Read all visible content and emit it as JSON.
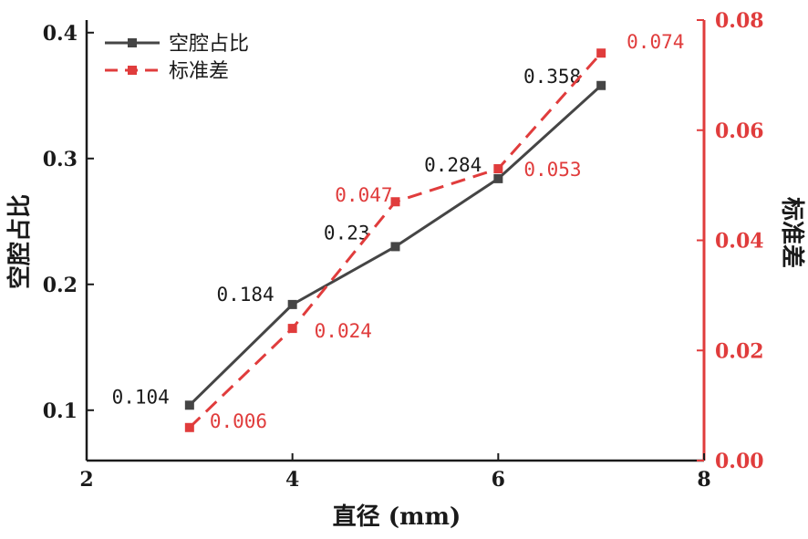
{
  "chart_data": {
    "type": "line",
    "x": [
      3,
      4,
      5,
      6,
      7
    ],
    "xlabel": "直径 (mm)",
    "xlim": [
      2,
      8
    ],
    "xticks": [
      2,
      4,
      6,
      8
    ],
    "ylabel_left": "空腔占比",
    "ylim_left": [
      0.06,
      0.41
    ],
    "yticks_left": [
      "0.1",
      "0.2",
      "0.3",
      "0.4"
    ],
    "ylabel_right": "标准差",
    "ylim_right": [
      0.0,
      0.08
    ],
    "yticks_right": [
      "0.00",
      "0.02",
      "0.04",
      "0.06",
      "0.08"
    ],
    "grid": false,
    "legend_position": "top-left",
    "series": [
      {
        "name": "空腔占比",
        "axis": "left",
        "color": "#454545",
        "line_style": "solid",
        "values": [
          0.104,
          0.184,
          0.23,
          0.284,
          0.358
        ],
        "labels": [
          "0.104",
          "0.184",
          "0.23",
          "0.284",
          "0.358"
        ]
      },
      {
        "name": "标准差",
        "axis": "right",
        "color": "#e03c3c",
        "line_style": "dashed",
        "values": [
          0.006,
          0.024,
          0.047,
          0.053,
          0.074
        ],
        "labels": [
          "0.006",
          "0.024",
          "0.047",
          "0.053",
          "0.074"
        ]
      }
    ]
  }
}
